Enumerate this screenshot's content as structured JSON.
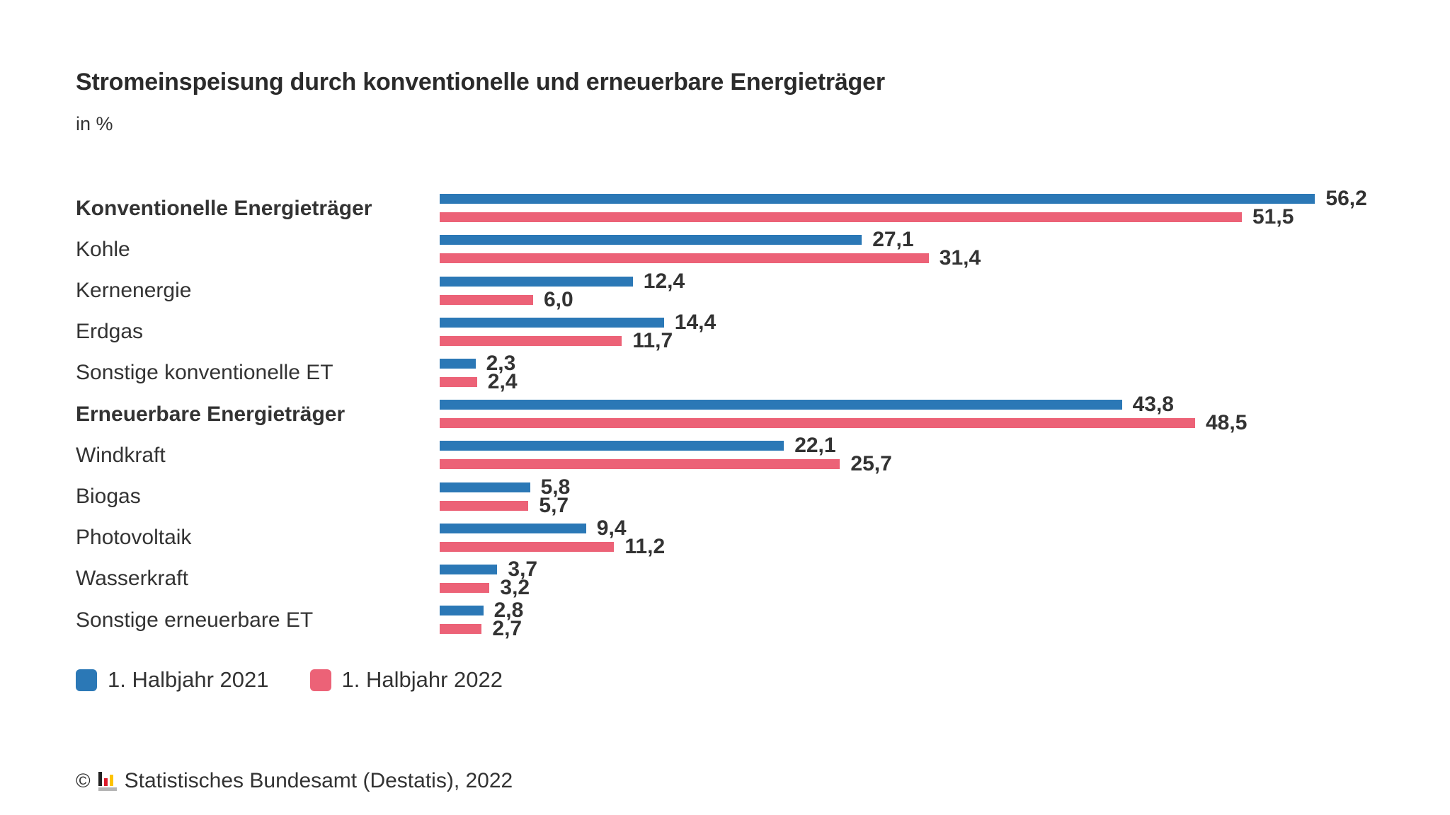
{
  "chart_data": {
    "type": "bar",
    "orientation": "horizontal",
    "unit": "%",
    "title": "Stromeinspeisung durch konventionelle und erneuerbare Energieträger",
    "subtitle": "in %",
    "categories": [
      "Konventionelle Energieträger",
      "Kohle",
      "Kernenergie",
      "Erdgas",
      "Sonstige konventionelle ET",
      "Erneuerbare Energieträger",
      "Windkraft",
      "Biogas",
      "Photovoltaik",
      "Wasserkraft",
      "Sonstige erneuerbare ET"
    ],
    "emphasized_categories": [
      "Konventionelle Energieträger",
      "Erneuerbare Energieträger"
    ],
    "series": [
      {
        "name": "1. Halbjahr 2021",
        "color": "#2b78b6",
        "values": [
          56.2,
          27.1,
          12.4,
          14.4,
          2.3,
          43.8,
          22.1,
          5.8,
          9.4,
          3.7,
          2.8
        ],
        "display_values": [
          "56,2",
          "27,1",
          "12,4",
          "14,4",
          "2,3",
          "43,8",
          "22,1",
          "5,8",
          "9,4",
          "3,7",
          "2,8"
        ]
      },
      {
        "name": "1. Halbjahr 2022",
        "color": "#ec6277",
        "values": [
          51.5,
          31.4,
          6.0,
          11.7,
          2.4,
          48.5,
          25.7,
          5.7,
          11.2,
          3.2,
          2.7
        ],
        "display_values": [
          "51,5",
          "31,4",
          "6,0",
          "11,7",
          "2,4",
          "48,5",
          "25,7",
          "5,7",
          "11,2",
          "3,2",
          "2,7"
        ]
      }
    ],
    "value_axis_range": [
      0,
      57
    ],
    "gridlines": false,
    "axis_lines": false,
    "data_labels": true,
    "legend_position": "bottom-left"
  },
  "footer": {
    "copyright_symbol": "©",
    "logo_icon": "destatis-mini-bar-chart",
    "source": "Statistisches Bundesamt (Destatis), 2022"
  },
  "colors": {
    "series_2021": "#2b78b6",
    "series_2022": "#ec6277",
    "text": "#333333",
    "title_text": "#2b2b2b",
    "background": "#ffffff",
    "logo_black": "#222222",
    "logo_red": "#dd1a2b",
    "logo_yellow": "#fdc300",
    "logo_gray": "#b5b5b5"
  }
}
